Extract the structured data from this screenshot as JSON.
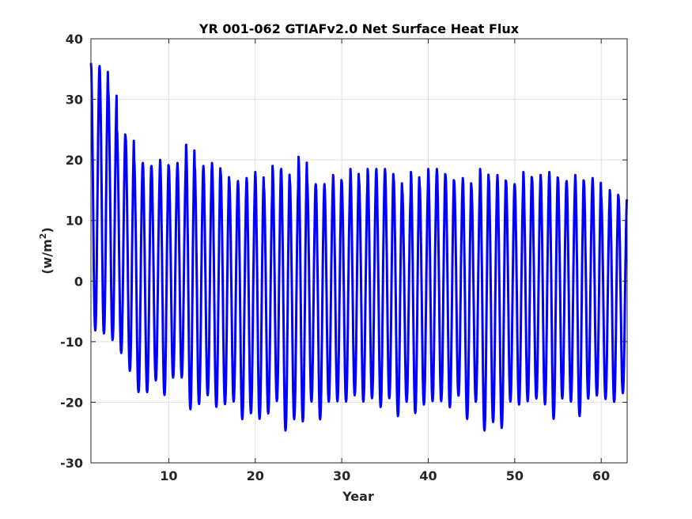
{
  "chart_data": {
    "type": "line",
    "title": "YR 001-062 GTIAFv2.0 Net Surface Heat Flux",
    "xlabel": "Year",
    "ylabel_main": "(w/m",
    "ylabel_sup": "2",
    "ylabel_close": ")",
    "xlim": [
      1,
      63
    ],
    "ylim": [
      -30,
      40
    ],
    "xticks": [
      10,
      20,
      30,
      40,
      50,
      60
    ],
    "yticks": [
      -30,
      -20,
      -10,
      0,
      10,
      20,
      30,
      40
    ],
    "grid": true,
    "line_color": "#0000ff",
    "samples_per_year": 12,
    "series": [
      {
        "values_note": "monthly-like seasonal cycle; annual peaks and troughs listed per year",
        "annual_max": [
          36,
          35.5,
          31.5,
          25,
          24,
          20,
          19.5,
          19,
          20,
          19,
          19.5,
          22.5,
          19,
          19,
          19.5,
          18,
          16.5,
          16.5,
          17,
          18,
          15.5,
          19,
          18.5,
          16.5,
          20.5,
          16.5,
          16,
          16,
          17.5,
          16.5,
          18.5,
          16.5,
          18.5,
          18.5,
          18.5,
          17,
          15,
          18,
          16,
          18.5,
          18.5,
          17.5,
          16.5,
          17,
          15.5,
          18.5,
          17,
          17.5,
          16.5,
          16,
          18,
          17,
          17.5,
          18,
          17,
          16.5,
          17.5,
          16.5,
          17,
          14,
          15,
          14,
          13.5
        ],
        "annual_min": [
          -9.5,
          -10,
          -11,
          -13,
          -16,
          -19.5,
          -19.5,
          -17.5,
          -20,
          -17,
          -17,
          -22.5,
          -21.5,
          -20,
          -22,
          -21.5,
          -21,
          -24,
          -23,
          -24,
          -23,
          -21,
          -26,
          -24,
          -24.5,
          -21,
          -24,
          -21,
          -21,
          -21,
          -20,
          -21,
          -20.5,
          -22,
          -20.5,
          -23.5,
          -21,
          -23,
          -21.5,
          -21,
          -21,
          -22,
          -20,
          -24,
          -21,
          -26,
          -24.5,
          -25.5,
          -21,
          -21.5,
          -21,
          -20.5,
          -21.5,
          -24,
          -20.5,
          -21,
          -23.5,
          -20.5,
          -20,
          -20.5,
          -21,
          -19.5,
          -17.5
        ]
      }
    ]
  }
}
